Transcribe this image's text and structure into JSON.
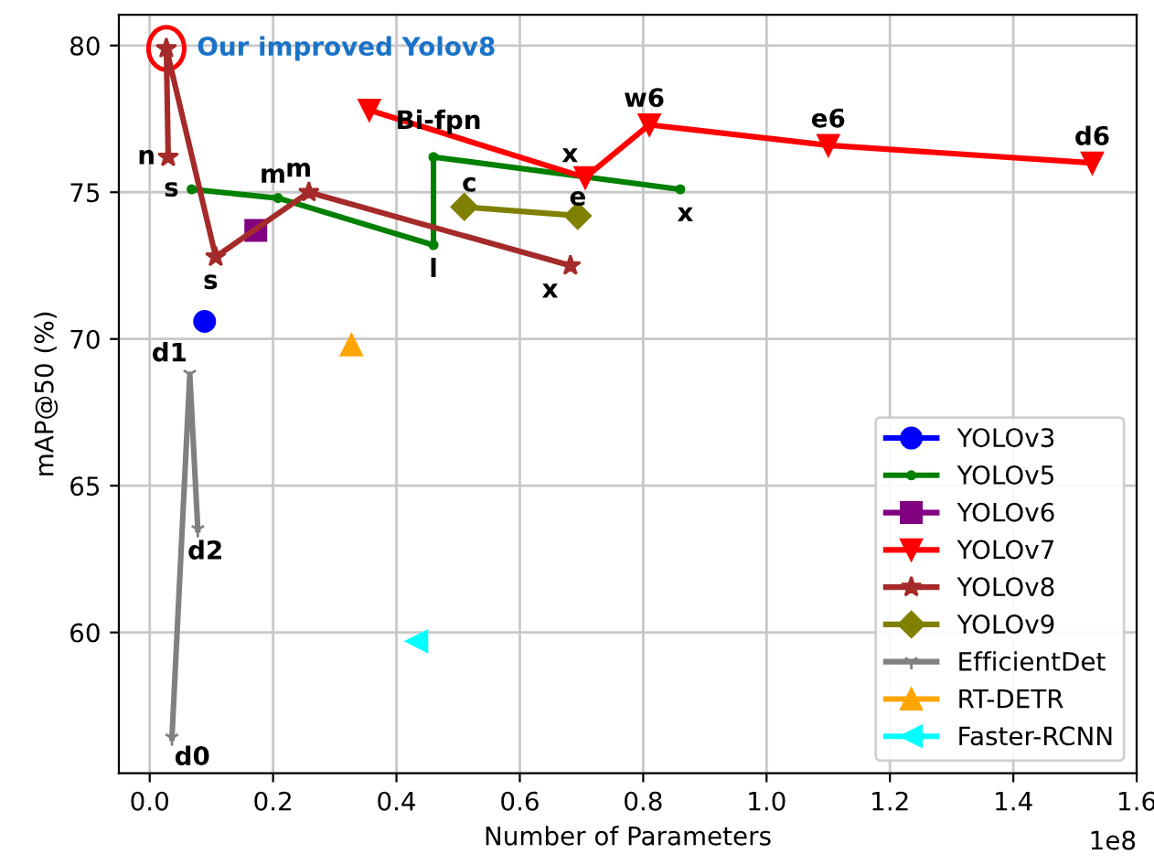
{
  "chart_data": {
    "type": "line",
    "xlabel": "Number of Parameters",
    "ylabel": "mAP@50 (%)",
    "xlim": [
      -0.05,
      1.6
    ],
    "ylim": [
      55.2,
      81.05
    ],
    "xticks": [
      {
        "value": 0,
        "label": "0.0"
      },
      {
        "value": 0.2,
        "label": "0.2"
      },
      {
        "value": 0.4,
        "label": "0.4"
      },
      {
        "value": 0.6,
        "label": "0.6"
      },
      {
        "value": 0.8,
        "label": "0.8"
      },
      {
        "value": 1.0,
        "label": "1.0"
      },
      {
        "value": 1.2,
        "label": "1.2"
      },
      {
        "value": 1.4,
        "label": "1.4"
      },
      {
        "value": 1.6,
        "label": "1.6"
      }
    ],
    "yticks": [
      60,
      65,
      70,
      75,
      80
    ],
    "grid": true,
    "legend": "bottom right",
    "series": [
      {
        "name": "YOLOv3",
        "color": "#0000ff",
        "marker": "circle",
        "x": [
          0.089
        ],
        "values": [
          70.6
        ]
      },
      {
        "name": "YOLOv5",
        "color": "#008000",
        "marker": "point",
        "x": [
          0.068,
          0.208,
          0.46,
          0.46,
          0.86
        ],
        "values": [
          75.1,
          74.8,
          73.2,
          76.2,
          75.1
        ]
      },
      {
        "name": "YOLOv6",
        "color": "#800080",
        "marker": "square",
        "x": [
          0.172
        ],
        "values": [
          73.7
        ]
      },
      {
        "name": "YOLOv7",
        "color": "#ff0000",
        "marker": "triangle_down",
        "x": [
          0.356,
          0.706,
          0.81,
          1.1,
          1.528
        ],
        "values": [
          77.8,
          75.5,
          77.3,
          76.6,
          76.0
        ]
      },
      {
        "name": "YOLOv8",
        "color": "#a52a2a",
        "marker": "star",
        "x": [
          0.03,
          0.027,
          0.107,
          0.258,
          0.682
        ],
        "values": [
          76.2,
          79.9,
          72.8,
          75.0,
          72.5
        ]
      },
      {
        "name": "YOLOv9",
        "color": "#808000",
        "marker": "diamond",
        "x": [
          0.51,
          0.694
        ],
        "values": [
          74.5,
          74.2
        ]
      },
      {
        "name": "EfficientDet",
        "color": "#808080",
        "marker": "cross",
        "x": [
          0.036,
          0.065,
          0.078
        ],
        "values": [
          56.4,
          68.8,
          63.5
        ]
      },
      {
        "name": "RT-DETR",
        "color": "#ffa500",
        "marker": "triangle",
        "x": [
          0.327
        ],
        "values": [
          69.8
        ]
      },
      {
        "name": "Faster-RCNN",
        "color": "#00ffff",
        "marker": "triangle_left",
        "x": [
          0.433
        ],
        "values": [
          59.7
        ]
      }
    ],
    "annotations": [
      {
        "text": "Our improved Yolov8",
        "x": 0.027,
        "y": 79.9
      },
      {
        "text": "n",
        "x": 0.03,
        "y": 76.2
      },
      {
        "text": "s",
        "x": 0.068,
        "y": 75.1
      },
      {
        "text": "s",
        "x": 0.107,
        "y": 72.8
      },
      {
        "text": "m",
        "x": 0.208,
        "y": 74.8
      },
      {
        "text": "m",
        "x": 0.258,
        "y": 75.0
      },
      {
        "text": "Bi-fpn",
        "x": 0.46,
        "y": 76.2
      },
      {
        "text": "l",
        "x": 0.46,
        "y": 73.2
      },
      {
        "text": "c",
        "x": 0.51,
        "y": 74.5
      },
      {
        "text": "e",
        "x": 0.694,
        "y": 74.2
      },
      {
        "text": "x",
        "x": 0.682,
        "y": 72.5
      },
      {
        "text": "x",
        "x": 0.706,
        "y": 75.5
      },
      {
        "text": "x",
        "x": 0.86,
        "y": 75.1
      },
      {
        "text": "w6",
        "x": 0.81,
        "y": 77.3
      },
      {
        "text": "e6",
        "x": 1.1,
        "y": 76.6
      },
      {
        "text": "d6",
        "x": 1.528,
        "y": 76.0
      },
      {
        "text": "d1",
        "x": 0.065,
        "y": 68.8
      },
      {
        "text": "d2",
        "x": 0.078,
        "y": 63.5
      },
      {
        "text": "d0",
        "x": 0.036,
        "y": 56.4
      },
      "1e8"
    ]
  }
}
